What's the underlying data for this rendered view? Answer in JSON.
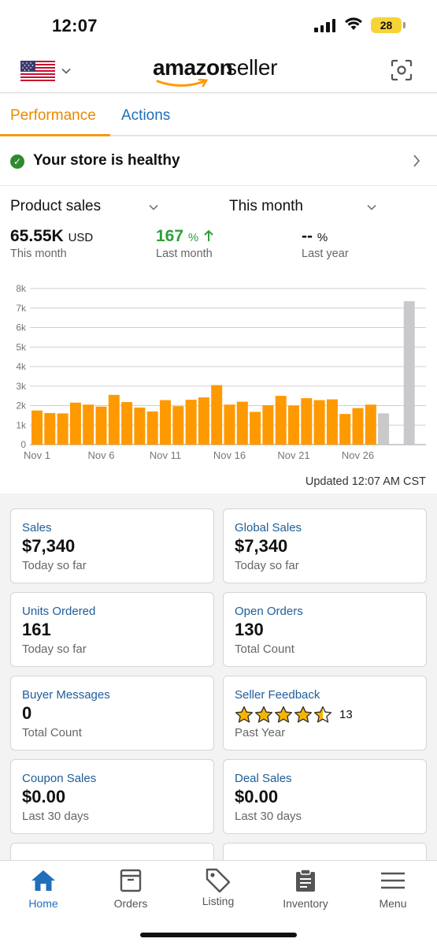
{
  "status_bar": {
    "time": "12:07",
    "battery": "28"
  },
  "app_bar": {
    "logo_primary": "amazon",
    "logo_secondary": "seller",
    "flag": "us-flag-icon",
    "right_icon": "scan-icon"
  },
  "tabs": [
    {
      "label": "Performance",
      "active": true
    },
    {
      "label": "Actions",
      "active": false
    }
  ],
  "health": {
    "text": "Your store is healthy",
    "status_color": "#2e8b2e"
  },
  "performance": {
    "metric_select": "Product sales",
    "period_select": "This month",
    "summary": [
      {
        "value": "65.55K",
        "unit": "USD",
        "label": "This month"
      },
      {
        "value": "167",
        "unit": "%",
        "label": "Last month",
        "trend": "up"
      },
      {
        "value": "--",
        "unit": "%",
        "label": "Last year"
      }
    ],
    "updated": "Updated 12:07 AM CST"
  },
  "chart_data": {
    "type": "bar",
    "y_ticks": [
      "0",
      "1k",
      "2k",
      "3k",
      "4k",
      "5k",
      "6k",
      "7k",
      "8k"
    ],
    "x_tick_labels": [
      "Nov 1",
      "Nov 6",
      "Nov 11",
      "Nov 16",
      "Nov 21",
      "Nov 26"
    ],
    "ylim": [
      0,
      8000
    ],
    "grid": true,
    "colors": {
      "past": "#ff9900",
      "current": "#c9c9cc"
    },
    "categories": [
      "Nov 1",
      "Nov 2",
      "Nov 3",
      "Nov 4",
      "Nov 5",
      "Nov 6",
      "Nov 7",
      "Nov 8",
      "Nov 9",
      "Nov 10",
      "Nov 11",
      "Nov 12",
      "Nov 13",
      "Nov 14",
      "Nov 15",
      "Nov 16",
      "Nov 17",
      "Nov 18",
      "Nov 19",
      "Nov 20",
      "Nov 21",
      "Nov 22",
      "Nov 23",
      "Nov 24",
      "Nov 25",
      "Nov 26",
      "Nov 27",
      "Nov 28",
      "Nov 29",
      "Nov 30"
    ],
    "values": [
      1750,
      1620,
      1600,
      2150,
      2050,
      1950,
      2550,
      2180,
      1900,
      1700,
      2280,
      1970,
      2300,
      2420,
      3050,
      2050,
      2200,
      1680,
      2020,
      2500,
      2000,
      2380,
      2280,
      2320,
      1570,
      1870,
      2050,
      1600,
      null,
      7350
    ],
    "highlight": [
      false,
      false,
      false,
      false,
      false,
      false,
      false,
      false,
      false,
      false,
      false,
      false,
      false,
      false,
      false,
      false,
      false,
      false,
      false,
      false,
      false,
      false,
      false,
      false,
      false,
      false,
      false,
      true,
      false,
      true
    ]
  },
  "cards": [
    {
      "title": "Sales",
      "value": "$7,340",
      "sub": "Today so far"
    },
    {
      "title": "Global Sales",
      "value": "$7,340",
      "sub": "Today so far"
    },
    {
      "title": "Units Ordered",
      "value": "161",
      "sub": "Today so far"
    },
    {
      "title": "Open Orders",
      "value": "130",
      "sub": "Total Count"
    },
    {
      "title": "Buyer Messages",
      "value": "0",
      "sub": "Total Count"
    },
    {
      "title": "Seller Feedback",
      "rating": 4.5,
      "rating_max": 5,
      "count": "13",
      "sub": "Past Year"
    },
    {
      "title": "Coupon Sales",
      "value": "$0.00",
      "sub": "Last 30 days"
    },
    {
      "title": "Deal Sales",
      "value": "$0.00",
      "sub": "Last 30 days"
    }
  ],
  "bottom_nav": [
    {
      "label": "Home",
      "icon": "home-icon",
      "active": true
    },
    {
      "label": "Orders",
      "icon": "orders-box-icon",
      "active": false
    },
    {
      "label": "Listing",
      "icon": "tag-icon",
      "active": false
    },
    {
      "label": "Inventory",
      "icon": "clipboard-icon",
      "active": false
    },
    {
      "label": "Menu",
      "icon": "hamburger-menu-icon",
      "active": false
    }
  ]
}
